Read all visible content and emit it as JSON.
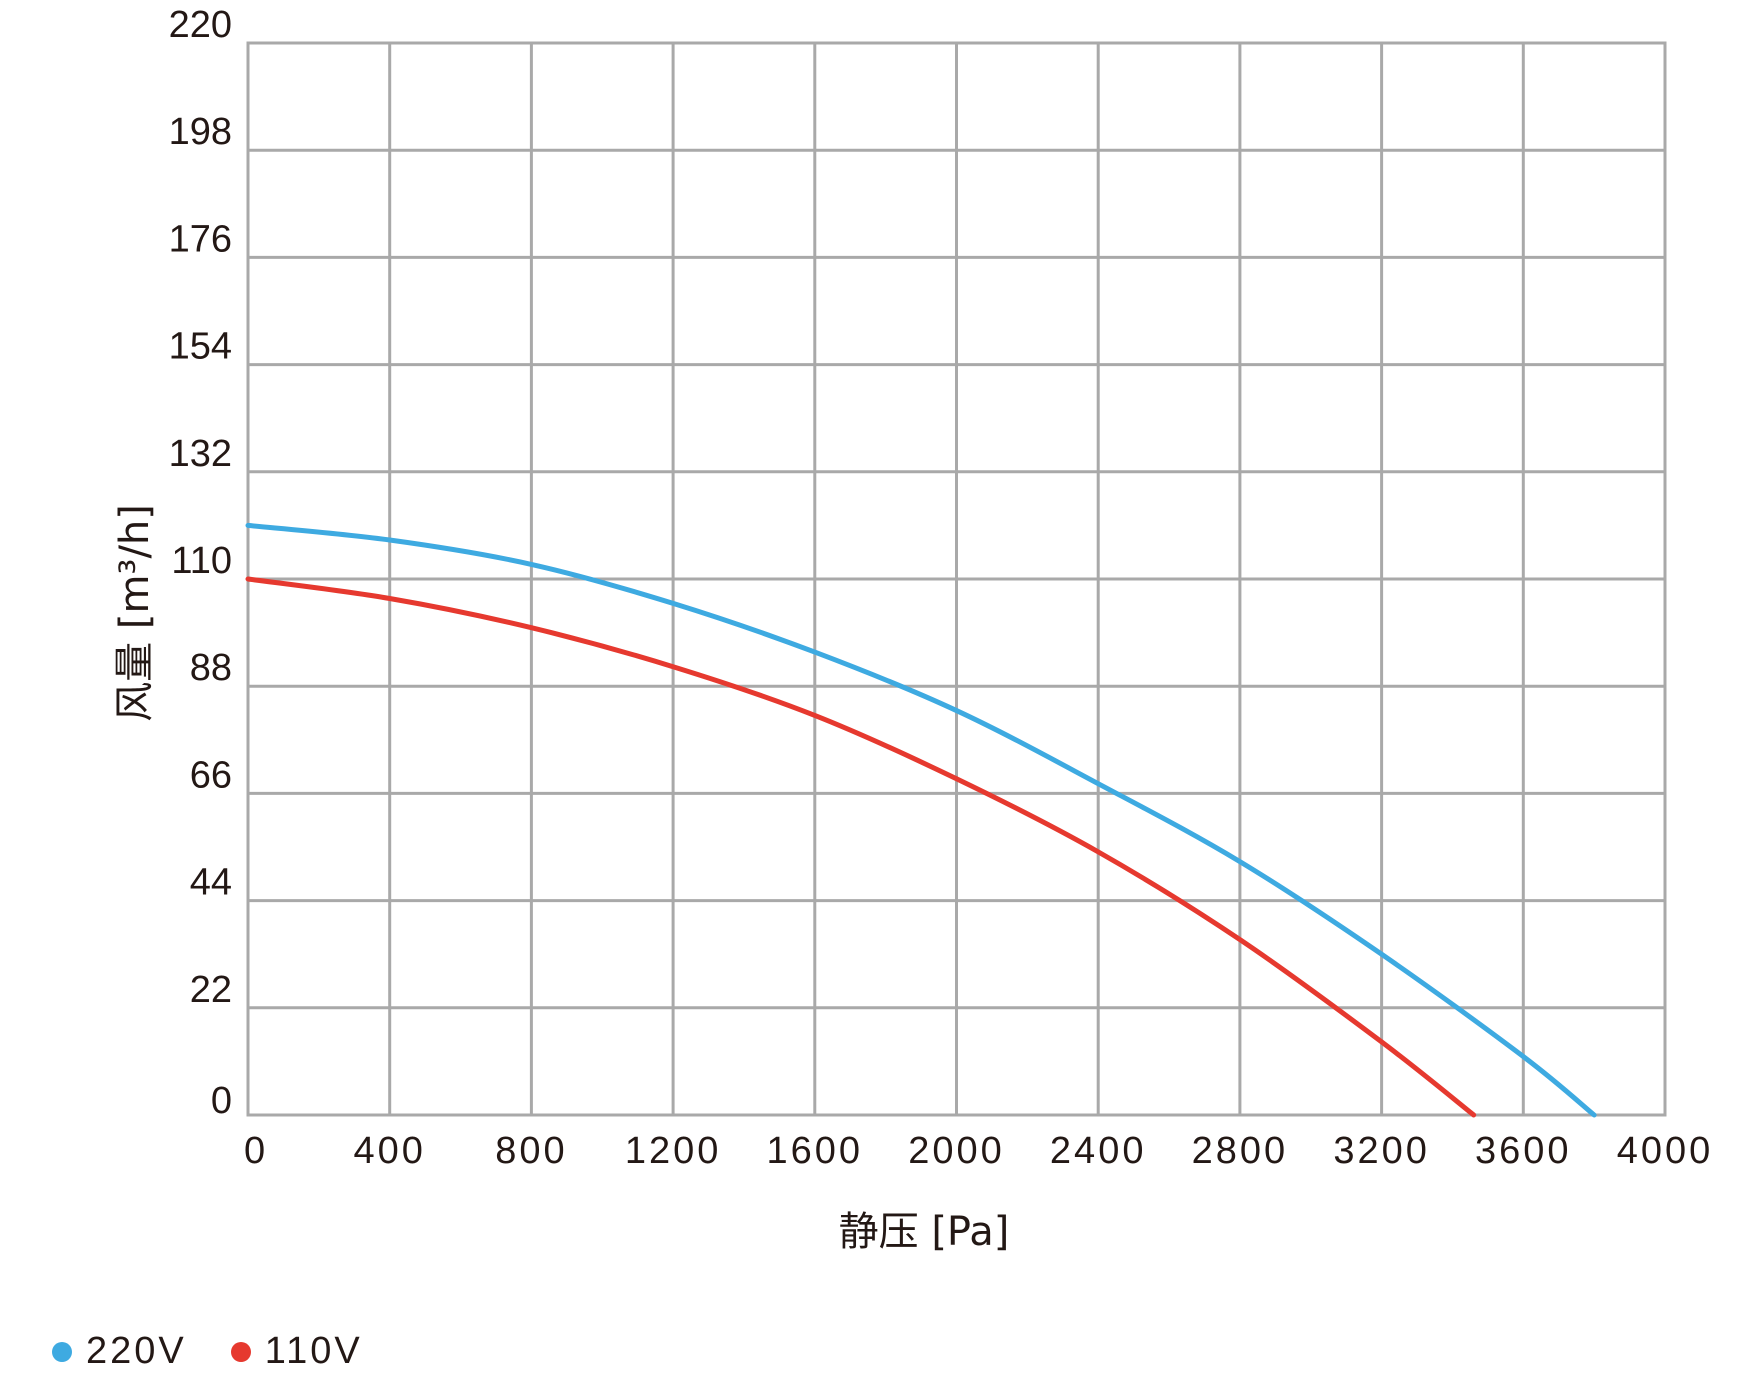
{
  "chart_data": {
    "type": "line",
    "title": "",
    "xlabel": "静压 [Pa]",
    "ylabel": "风量 [m³/h]",
    "xlim": [
      0,
      4000
    ],
    "ylim": [
      0,
      220
    ],
    "x_ticks": [
      "0",
      "400",
      "800",
      "1200",
      "1600",
      "2000",
      "2400",
      "2800",
      "3200",
      "3600",
      "4000"
    ],
    "y_ticks": [
      "0",
      "22",
      "44",
      "66",
      "88",
      "110",
      "132",
      "154",
      "176",
      "198",
      "220"
    ],
    "grid": true,
    "legend_position": "bottom-left",
    "series": [
      {
        "name": "220V",
        "color": "#3eaae1",
        "x": [
          0,
          400,
          800,
          1200,
          1600,
          2000,
          2400,
          2800,
          3200,
          3600,
          3800
        ],
        "y": [
          121,
          118,
          113,
          105,
          95,
          83,
          68,
          52,
          33,
          12,
          0
        ]
      },
      {
        "name": "110V",
        "color": "#e6392f",
        "x": [
          0,
          400,
          800,
          1200,
          1600,
          2000,
          2400,
          2800,
          3200,
          3460
        ],
        "y": [
          110,
          106,
          100,
          92,
          82,
          69,
          54,
          36,
          15,
          0
        ]
      }
    ]
  }
}
